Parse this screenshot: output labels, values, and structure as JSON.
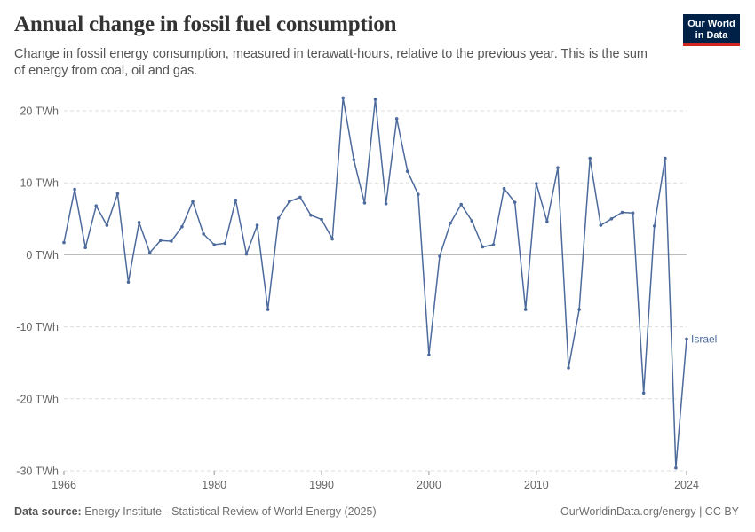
{
  "header": {
    "title": "Annual change in fossil fuel consumption",
    "subtitle": "Change in fossil energy consumption, measured in terawatt-hours, relative to the previous year. This is the sum of energy from coal, oil and gas.",
    "logo_line1": "Our World",
    "logo_line2": "in Data"
  },
  "footer": {
    "source_label": "Data source:",
    "source_text": "Energy Institute - Statistical Review of World Energy (2025)",
    "right_text": "OurWorldinData.org/energy | CC BY"
  },
  "colors": {
    "series": "#4c6a9c",
    "grid": "#dddddd",
    "zero_line": "#bbbbbb",
    "logo_bg": "#002147",
    "logo_accent": "#ce261e"
  },
  "chart_data": {
    "type": "line",
    "title": "Annual change in fossil fuel consumption",
    "ylabel": "",
    "xlabel": "",
    "ylim": [
      -30,
      20
    ],
    "xlim": [
      1966,
      2024
    ],
    "y_ticks": [
      20,
      10,
      0,
      -10,
      -20,
      -30
    ],
    "y_tick_labels": [
      "20 TWh",
      "10 TWh",
      "0 TWh",
      "-10 TWh",
      "-20 TWh",
      "-30 TWh"
    ],
    "x_ticks": [
      1966,
      1980,
      1990,
      2000,
      2010,
      2024
    ],
    "x_tick_labels": [
      "1966",
      "1980",
      "1990",
      "2000",
      "2010",
      "2024"
    ],
    "grid": "horizontal dashed",
    "series": [
      {
        "name": "Israel",
        "x": [
          1966,
          1967,
          1968,
          1969,
          1970,
          1971,
          1972,
          1973,
          1974,
          1975,
          1976,
          1977,
          1978,
          1979,
          1980,
          1981,
          1982,
          1983,
          1984,
          1985,
          1986,
          1987,
          1988,
          1989,
          1990,
          1991,
          1992,
          1993,
          1994,
          1995,
          1996,
          1997,
          1998,
          1999,
          2000,
          2001,
          2002,
          2003,
          2004,
          2005,
          2006,
          2007,
          2008,
          2009,
          2010,
          2011,
          2012,
          2013,
          2014,
          2015,
          2016,
          2017,
          2018,
          2019,
          2020,
          2021,
          2022,
          2023,
          2024
        ],
        "y": [
          1.7,
          9.1,
          1.0,
          6.8,
          4.1,
          8.5,
          -3.8,
          4.5,
          0.3,
          2.0,
          1.9,
          3.9,
          7.4,
          2.9,
          1.4,
          1.6,
          7.6,
          0.1,
          4.1,
          -7.6,
          5.1,
          7.4,
          8.0,
          5.5,
          4.9,
          2.2,
          21.8,
          13.2,
          7.2,
          21.6,
          7.1,
          18.9,
          11.6,
          8.4,
          -13.9,
          -0.2,
          4.4,
          7.0,
          4.7,
          1.1,
          1.4,
          9.2,
          7.3,
          -7.6,
          9.9,
          4.6,
          12.1,
          -15.7,
          -7.6,
          13.4,
          4.1,
          5.0,
          5.9,
          5.8,
          -19.2,
          4.0,
          13.4,
          -29.6,
          -11.7
        ]
      }
    ]
  }
}
